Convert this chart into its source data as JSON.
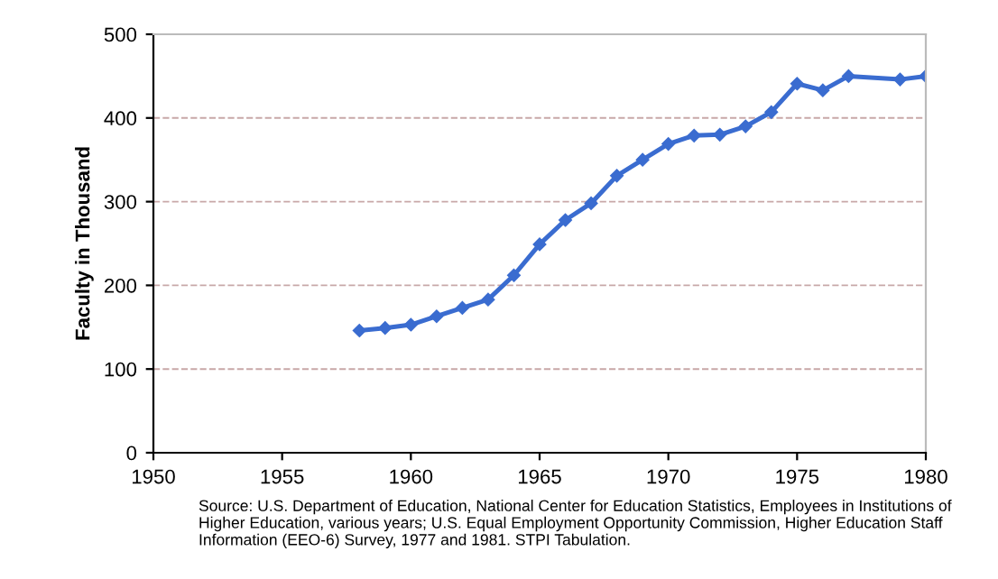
{
  "chart_data": {
    "type": "line",
    "ylabel": "Faculty in Thousand",
    "x": [
      1958,
      1959,
      1960,
      1961,
      1962,
      1963,
      1964,
      1965,
      1966,
      1967,
      1968,
      1969,
      1970,
      1971,
      1972,
      1973,
      1974,
      1975,
      1976,
      1977,
      1979,
      1980
    ],
    "series": [
      {
        "color": "#3a6cd0",
        "values": [
          146,
          149,
          153,
          163,
          173,
          183,
          212,
          249,
          278,
          298,
          331,
          350,
          369,
          379,
          380,
          390,
          407,
          441,
          433,
          450,
          446,
          450
        ]
      }
    ],
    "xlim": [
      1950,
      1980
    ],
    "xticks": [
      1950,
      1955,
      1960,
      1965,
      1970,
      1975,
      1980
    ],
    "ylim": [
      0,
      500
    ],
    "yticks": [
      0,
      100,
      200,
      300,
      400,
      500
    ],
    "grid": "y",
    "marker": "diamond",
    "line_style": "solid",
    "annotations": [
      "Source: U.S. Department of Education, National Center for Education Statistics, Employees in Institutions of Higher Education, various years; U.S. Equal Employment Opportunity Commission, Higher Education Staff Information (EEO-6) Survey, 1977 and 1981. STPI Tabulation."
    ]
  }
}
